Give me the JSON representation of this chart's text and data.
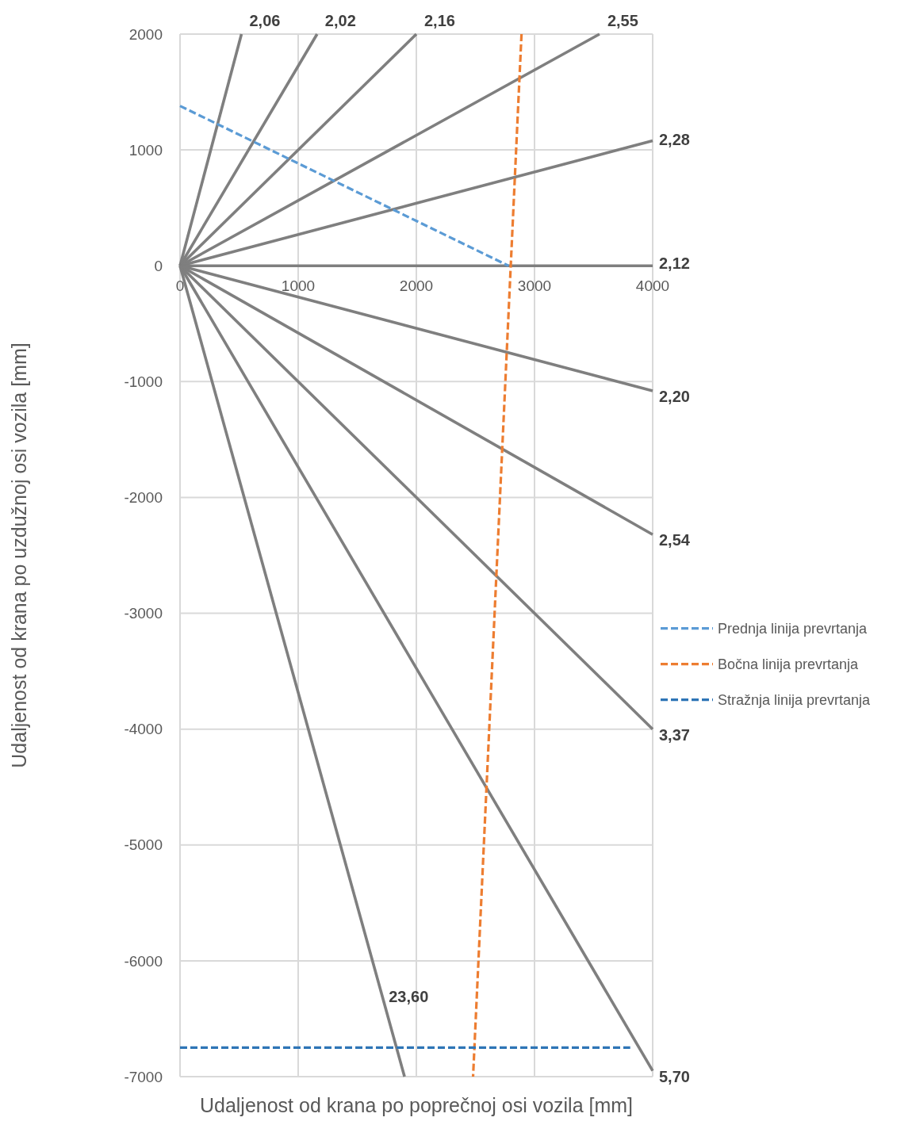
{
  "chart_data": {
    "type": "line",
    "xlabel": "Udaljenost od krana po poprečnoj osi vozila [mm]",
    "ylabel": "Udaljenost od krana po uzdužnoj osi vozila [mm]",
    "xlim": [
      0,
      4000
    ],
    "ylim": [
      -7000,
      2000
    ],
    "xticks": [
      0,
      1000,
      2000,
      3000,
      4000
    ],
    "yticks": [
      -7000,
      -6000,
      -5000,
      -4000,
      -3000,
      -2000,
      -1000,
      0,
      1000,
      2000
    ],
    "grid": true,
    "legend": "right",
    "series": [
      {
        "x": [
          0,
          520
        ],
        "values": [
          0,
          2000
        ],
        "color": "#7f7f7f",
        "line_style": "solid"
      },
      {
        "x": [
          0,
          1160
        ],
        "values": [
          0,
          2000
        ],
        "color": "#7f7f7f",
        "line_style": "solid"
      },
      {
        "x": [
          0,
          2000
        ],
        "values": [
          0,
          2000
        ],
        "color": "#7f7f7f",
        "line_style": "solid"
      },
      {
        "x": [
          0,
          3550
        ],
        "values": [
          0,
          2000
        ],
        "color": "#7f7f7f",
        "line_style": "solid"
      },
      {
        "x": [
          0,
          4000
        ],
        "values": [
          0,
          1080
        ],
        "color": "#7f7f7f",
        "line_style": "solid"
      },
      {
        "x": [
          0,
          4000
        ],
        "values": [
          0,
          0
        ],
        "color": "#7f7f7f",
        "line_style": "solid"
      },
      {
        "x": [
          0,
          4000
        ],
        "values": [
          0,
          -1080
        ],
        "color": "#7f7f7f",
        "line_style": "solid"
      },
      {
        "x": [
          0,
          4000
        ],
        "values": [
          0,
          -2320
        ],
        "color": "#7f7f7f",
        "line_style": "solid"
      },
      {
        "x": [
          0,
          4000
        ],
        "values": [
          0,
          -4000
        ],
        "color": "#7f7f7f",
        "line_style": "solid"
      },
      {
        "x": [
          0,
          4000
        ],
        "values": [
          0,
          -6950
        ],
        "color": "#7f7f7f",
        "line_style": "solid"
      },
      {
        "x": [
          0,
          1900
        ],
        "values": [
          0,
          -7000
        ],
        "color": "#7f7f7f",
        "line_style": "solid"
      },
      {
        "name": "Prednja linija prevrtanja",
        "x": [
          0,
          2780
        ],
        "values": [
          1380,
          0
        ],
        "color": "#5b9bd5",
        "line_style": "dashed"
      },
      {
        "name": "Bočna linija prevrtanja",
        "x": [
          2890,
          2480
        ],
        "values": [
          2000,
          -7000
        ],
        "color": "#ed7d31",
        "line_style": "dashed"
      },
      {
        "name": "Stražnja linija prevrtanja",
        "x": [
          0,
          3810
        ],
        "values": [
          -6750,
          -6750
        ],
        "color": "#2e75b6",
        "line_style": "dashed"
      }
    ],
    "annotations": [
      {
        "text": "2,06",
        "x": 520,
        "y": 2000
      },
      {
        "text": "2,02",
        "x": 1160,
        "y": 2000
      },
      {
        "text": "2,16",
        "x": 2000,
        "y": 2000
      },
      {
        "text": "2,55",
        "x": 3550,
        "y": 2000
      },
      {
        "text": "2,28",
        "x": 4000,
        "y": 1080
      },
      {
        "text": "2,12",
        "x": 4000,
        "y": 0
      },
      {
        "text": "2,20",
        "x": 4000,
        "y": -1080
      },
      {
        "text": "2,54",
        "x": 4000,
        "y": -2320
      },
      {
        "text": "3,37",
        "x": 4000,
        "y": -4000
      },
      {
        "text": "5,70",
        "x": 4000,
        "y": -6950
      },
      {
        "text": "23,60",
        "x": 1740,
        "y": -6400
      }
    ]
  }
}
